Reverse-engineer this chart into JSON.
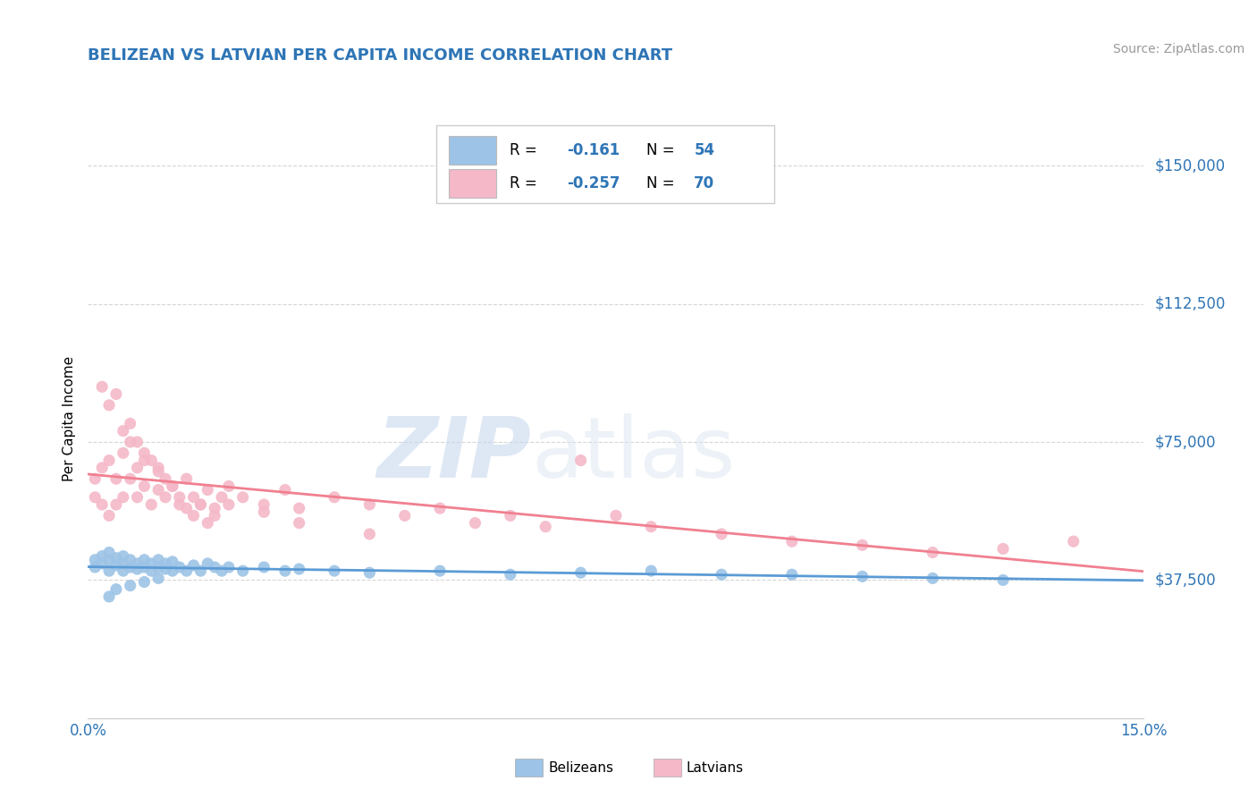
{
  "title": "BELIZEAN VS LATVIAN PER CAPITA INCOME CORRELATION CHART",
  "title_color": "#2e75b6",
  "source_text": "Source: ZipAtlas.com",
  "ylabel": "Per Capita Income",
  "xlim": [
    0.0,
    0.15
  ],
  "ylim": [
    0,
    162500
  ],
  "yticks": [
    0,
    37500,
    75000,
    112500,
    150000
  ],
  "ytick_labels": [
    "",
    "$37,500",
    "$75,000",
    "$112,500",
    "$150,000"
  ],
  "ytick_color": "#2e75b6",
  "xtick_labels": [
    "0.0%",
    "15.0%"
  ],
  "xtick_color": "#2e75b6",
  "belizean_color": "#9dc3e6",
  "latvian_color": "#f4b8c8",
  "belizean_line_color": "#5b9bd5",
  "latvian_line_color": "#f08090",
  "watermark_zip": "ZIP",
  "watermark_atlas": "atlas",
  "background_color": "#ffffff",
  "grid_color": "#cccccc",
  "belizean_x": [
    0.001,
    0.001,
    0.002,
    0.002,
    0.003,
    0.003,
    0.003,
    0.004,
    0.004,
    0.005,
    0.005,
    0.005,
    0.006,
    0.006,
    0.007,
    0.007,
    0.008,
    0.008,
    0.009,
    0.009,
    0.01,
    0.01,
    0.011,
    0.011,
    0.012,
    0.012,
    0.013,
    0.014,
    0.015,
    0.016,
    0.017,
    0.018,
    0.019,
    0.02,
    0.022,
    0.025,
    0.028,
    0.03,
    0.035,
    0.04,
    0.05,
    0.06,
    0.07,
    0.08,
    0.09,
    0.1,
    0.11,
    0.12,
    0.13,
    0.003,
    0.004,
    0.006,
    0.008,
    0.01
  ],
  "belizean_y": [
    41000,
    43000,
    42000,
    44000,
    40000,
    43000,
    45000,
    41500,
    43500,
    40000,
    42000,
    44000,
    41000,
    43000,
    40500,
    42000,
    41000,
    43000,
    40000,
    42000,
    41000,
    43000,
    40500,
    42000,
    40000,
    42500,
    41000,
    40000,
    41500,
    40000,
    42000,
    41000,
    40000,
    41000,
    40000,
    41000,
    40000,
    40500,
    40000,
    39500,
    40000,
    39000,
    39500,
    40000,
    39000,
    39000,
    38500,
    38000,
    37500,
    33000,
    35000,
    36000,
    37000,
    38000
  ],
  "latvian_x": [
    0.001,
    0.001,
    0.002,
    0.002,
    0.003,
    0.003,
    0.004,
    0.004,
    0.005,
    0.005,
    0.006,
    0.006,
    0.007,
    0.007,
    0.008,
    0.008,
    0.009,
    0.01,
    0.01,
    0.011,
    0.012,
    0.013,
    0.014,
    0.015,
    0.016,
    0.017,
    0.018,
    0.019,
    0.02,
    0.022,
    0.025,
    0.028,
    0.03,
    0.035,
    0.04,
    0.045,
    0.05,
    0.055,
    0.06,
    0.065,
    0.07,
    0.075,
    0.08,
    0.09,
    0.1,
    0.11,
    0.12,
    0.13,
    0.14,
    0.002,
    0.003,
    0.004,
    0.005,
    0.006,
    0.007,
    0.008,
    0.009,
    0.01,
    0.011,
    0.012,
    0.013,
    0.014,
    0.015,
    0.016,
    0.017,
    0.018,
    0.02,
    0.025,
    0.03,
    0.04
  ],
  "latvian_y": [
    60000,
    65000,
    58000,
    68000,
    55000,
    70000,
    58000,
    65000,
    72000,
    60000,
    65000,
    75000,
    60000,
    68000,
    63000,
    70000,
    58000,
    62000,
    67000,
    60000,
    63000,
    58000,
    65000,
    60000,
    58000,
    62000,
    57000,
    60000,
    63000,
    60000,
    58000,
    62000,
    57000,
    60000,
    58000,
    55000,
    57000,
    53000,
    55000,
    52000,
    70000,
    55000,
    52000,
    50000,
    48000,
    47000,
    45000,
    46000,
    48000,
    90000,
    85000,
    88000,
    78000,
    80000,
    75000,
    72000,
    70000,
    68000,
    65000,
    63000,
    60000,
    57000,
    55000,
    58000,
    53000,
    55000,
    58000,
    56000,
    53000,
    50000
  ]
}
